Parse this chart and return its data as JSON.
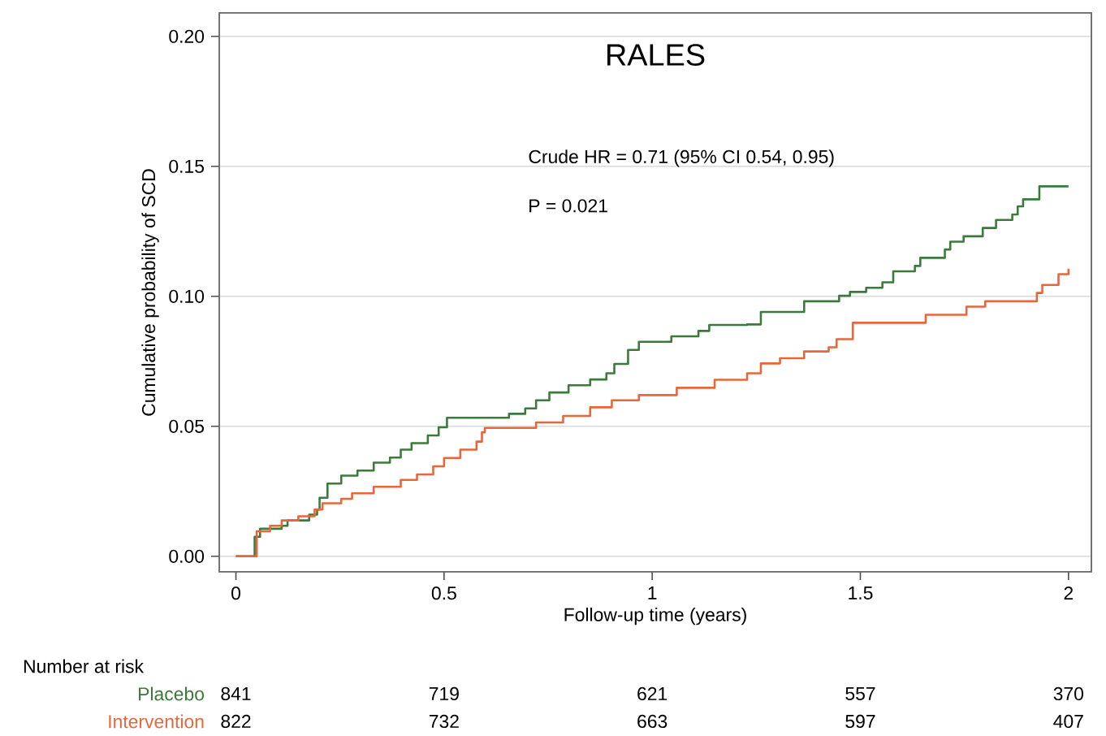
{
  "chart_data": {
    "type": "step",
    "title": "RALES",
    "xlabel": "Follow-up time (years)",
    "ylabel": "Cumulative probability of SCD",
    "xlim": [
      -0.04,
      2.055
    ],
    "ylim": [
      -0.006,
      0.209
    ],
    "xticks": [
      0,
      0.5,
      1,
      1.5,
      2
    ],
    "yticks": [
      {
        "value": 0,
        "label": "0.00"
      },
      {
        "value": 0.05,
        "label": "0.05"
      },
      {
        "value": 0.1,
        "label": "0.10"
      },
      {
        "value": 0.15,
        "label": "0.15"
      },
      {
        "value": 0.2,
        "label": "0.20"
      }
    ],
    "grid": "y",
    "legend": false,
    "marker": "none",
    "line_style": "solid",
    "annotations": [
      "Crude HR = 0.71 (95% CI 0.54, 0.95)",
      "P = 0.021",
      "Number at risk",
      "841",
      "719",
      "621",
      "557",
      "370",
      "822",
      "732",
      "663",
      "597",
      "407"
    ],
    "series": [
      {
        "name": "Placebo",
        "color": "#3b7a3b",
        "x": [
          0,
          0.03,
          0.045,
          0.058,
          0.11,
          0.124,
          0.176,
          0.195,
          0.201,
          0.22,
          0.253,
          0.292,
          0.331,
          0.37,
          0.396,
          0.422,
          0.461,
          0.487,
          0.507,
          0.656,
          0.695,
          0.721,
          0.753,
          0.799,
          0.851,
          0.89,
          0.909,
          0.942,
          0.968,
          1.046,
          1.111,
          1.137,
          1.228,
          1.261,
          1.365,
          1.449,
          1.475,
          1.514,
          1.553,
          1.579,
          1.631,
          1.644,
          1.703,
          1.716,
          1.748,
          1.794,
          1.826,
          1.865,
          1.878,
          1.891,
          1.93,
          2.0
        ],
        "values": [
          0,
          0.0,
          0.0075,
          0.0106,
          0.0117,
          0.0138,
          0.016,
          0.018,
          0.0225,
          0.028,
          0.031,
          0.033,
          0.036,
          0.038,
          0.041,
          0.0435,
          0.0465,
          0.0496,
          0.0533,
          0.0548,
          0.0569,
          0.06,
          0.063,
          0.0658,
          0.068,
          0.0704,
          0.074,
          0.0794,
          0.0825,
          0.0846,
          0.0867,
          0.089,
          0.0892,
          0.094,
          0.0981,
          0.1002,
          0.1017,
          0.1033,
          0.1054,
          0.1096,
          0.1117,
          0.1148,
          0.118,
          0.121,
          0.1231,
          0.1263,
          0.1294,
          0.1315,
          0.1346,
          0.1373,
          0.1423,
          0.1423
        ]
      },
      {
        "name": "Intervention",
        "color": "#e8673a",
        "x": [
          0,
          0.03,
          0.05,
          0.082,
          0.11,
          0.15,
          0.189,
          0.208,
          0.253,
          0.279,
          0.331,
          0.396,
          0.435,
          0.474,
          0.5,
          0.539,
          0.578,
          0.591,
          0.598,
          0.721,
          0.786,
          0.851,
          0.903,
          0.968,
          1.059,
          1.15,
          1.228,
          1.261,
          1.307,
          1.365,
          1.424,
          1.443,
          1.482,
          1.657,
          1.755,
          1.8,
          1.924,
          1.937,
          1.976,
          2.0
        ],
        "values": [
          0,
          0.0,
          0.0096,
          0.0117,
          0.0138,
          0.0154,
          0.018,
          0.0204,
          0.0221,
          0.0242,
          0.0267,
          0.0294,
          0.0315,
          0.0346,
          0.0378,
          0.041,
          0.0441,
          0.0477,
          0.0494,
          0.0515,
          0.054,
          0.0573,
          0.06,
          0.062,
          0.0648,
          0.0679,
          0.0704,
          0.0742,
          0.0762,
          0.0788,
          0.0804,
          0.0835,
          0.0898,
          0.0929,
          0.096,
          0.0981,
          0.1013,
          0.1044,
          0.1085,
          0.1106
        ]
      }
    ]
  }
}
